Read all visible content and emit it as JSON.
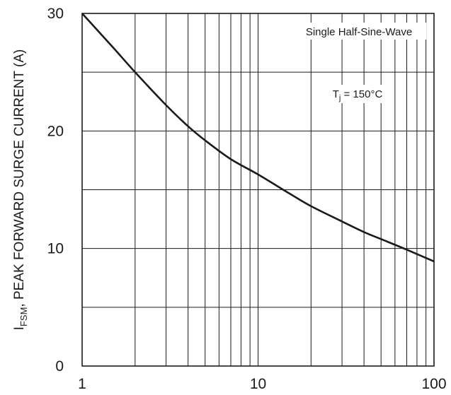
{
  "chart_data": {
    "type": "line",
    "title": "",
    "xlabel": "",
    "ylabel_main": "I",
    "ylabel_sub": "FSM",
    "ylabel_rest": ", PEAK FORWARD SURGE CURRENT (A)",
    "xscale": "log",
    "xlim": [
      1,
      100
    ],
    "ylim": [
      0,
      30
    ],
    "grid": true,
    "x_ticks": [
      {
        "value": 1,
        "label": "1"
      },
      {
        "value": 10,
        "label": "10"
      },
      {
        "value": 100,
        "label": "100"
      }
    ],
    "y_ticks": [
      {
        "value": 0,
        "label": "0"
      },
      {
        "value": 10,
        "label": "10"
      },
      {
        "value": 20,
        "label": "20"
      },
      {
        "value": 30,
        "label": "30"
      }
    ],
    "annotations": {
      "waveform": "Single Half-Sine-Wave",
      "tj_main": "T",
      "tj_sub": "j",
      "tj_rest": " = 150°C"
    },
    "series": [
      {
        "color": "#1a1a1a",
        "x": [
          1,
          1.5,
          2,
          3,
          4,
          5,
          7,
          10,
          15,
          20,
          30,
          40,
          50,
          70,
          100
        ],
        "y": [
          30,
          27.1,
          25.0,
          22.2,
          20.4,
          19.2,
          17.6,
          16.3,
          14.7,
          13.6,
          12.3,
          11.4,
          10.8,
          9.9,
          8.9
        ]
      }
    ]
  }
}
